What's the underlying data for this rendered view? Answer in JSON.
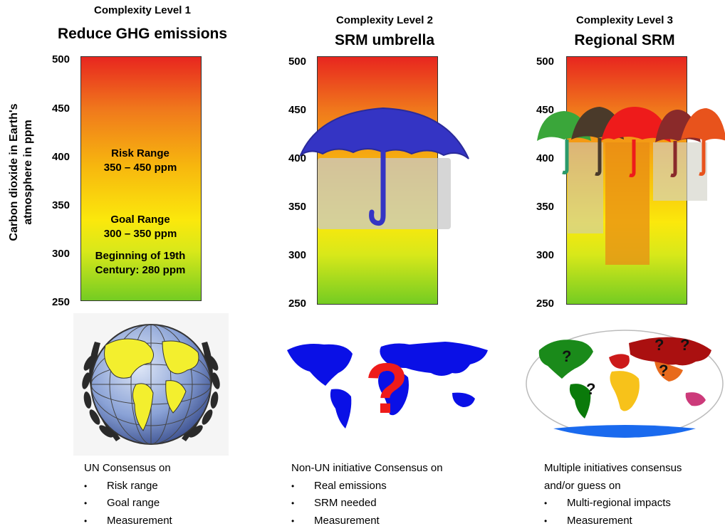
{
  "panels": [
    {
      "level": "Complexity Level 1",
      "title": "Reduce GHG emissions",
      "ticks": [
        "500",
        "450",
        "400",
        "350",
        "300",
        "250"
      ],
      "risk_range": [
        "Risk Range",
        "350 – 450 ppm"
      ],
      "goal_range": [
        "Goal Range",
        "300 – 350  ppm"
      ],
      "beginning": [
        "Beginning of 19th",
        "Century: 280 ppm"
      ],
      "caption_intro": "UN Consensus on",
      "bullets": [
        "Risk range",
        "Goal range",
        "Measurement"
      ]
    },
    {
      "level": "Complexity Level 2",
      "title": "SRM umbrella",
      "ticks": [
        "500",
        "450",
        "400",
        "350",
        "300",
        "250"
      ],
      "question_mark": "?",
      "caption_intro": "Non-UN initiative Consensus on",
      "bullets": [
        "Real emissions",
        "SRM needed",
        "Measurement"
      ]
    },
    {
      "level": "Complexity Level 3",
      "title": "Regional SRM",
      "ticks": [
        "500",
        "450",
        "400",
        "350",
        "300",
        "250"
      ],
      "question_mark": "?",
      "caption_intro": "Multiple initiatives consensus",
      "caption_intro2": "and/or guess on",
      "bullets": [
        "Multi-regional impacts",
        "Measurement"
      ]
    }
  ],
  "y_axis_label": [
    "Carbon dioxide in Earth's",
    "atmosphere in ppm"
  ],
  "colors": {
    "umbrella_blue": "#3434c4",
    "map_blue": "#0a10e6",
    "question_red": "#ee1b1b",
    "un_blue": "#6a86c8",
    "land_yellow": "#f3ef2e"
  }
}
